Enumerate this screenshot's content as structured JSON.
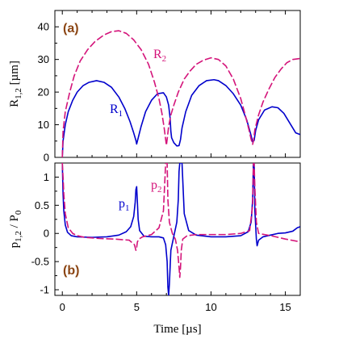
{
  "chart_data": [
    {
      "type": "line",
      "panel_label": "(a)",
      "ylabel": {
        "main": "R",
        "sub": "1,2",
        "unit": "[µm]"
      },
      "xlim": [
        -0.5,
        16
      ],
      "ylim": [
        0,
        45
      ],
      "yticks": [
        0,
        10,
        20,
        30,
        40
      ],
      "xticks": [
        0,
        5,
        10,
        15
      ],
      "grid": false,
      "series": [
        {
          "name": "R1",
          "label_main": "R",
          "label_sub": "1",
          "color": "#0000cc",
          "dash": "solid",
          "x": [
            0,
            0.05,
            0.2,
            0.4,
            0.7,
            1.0,
            1.4,
            1.8,
            2.3,
            2.8,
            3.3,
            3.8,
            4.2,
            4.55,
            4.8,
            4.95,
            5.0,
            5.05,
            5.3,
            5.6,
            6.0,
            6.4,
            6.8,
            7.0,
            7.15,
            7.25,
            7.3,
            7.35,
            7.5,
            7.7,
            7.85,
            7.95,
            8.05,
            8.3,
            8.7,
            9.2,
            9.7,
            10.2,
            10.5,
            11.0,
            11.5,
            12.0,
            12.4,
            12.65,
            12.8,
            12.9,
            13.0,
            13.2,
            13.6,
            14.1,
            14.5,
            14.9,
            15.3,
            15.7,
            16.0
          ],
          "y": [
            0,
            5,
            10,
            14,
            17.5,
            20,
            22,
            23,
            23.5,
            23,
            21.5,
            18.5,
            15,
            11,
            7.5,
            5.2,
            4.1,
            5,
            9.5,
            14,
            17.5,
            19.5,
            19.8,
            18.5,
            16,
            12,
            8,
            6,
            4.5,
            3.5,
            3.6,
            5.5,
            9,
            14,
            19,
            22,
            23.5,
            23.8,
            23.5,
            22,
            19.5,
            16,
            11.5,
            7.5,
            4.7,
            5.2,
            8.2,
            11.5,
            14.5,
            15.5,
            15.2,
            13.5,
            10.5,
            7.5,
            7
          ]
        },
        {
          "name": "R2",
          "label_main": "R",
          "label_sub": "2",
          "color": "#d4147a",
          "dash": "dashed",
          "x": [
            0,
            0.05,
            0.2,
            0.5,
            0.8,
            1.2,
            1.7,
            2.2,
            2.8,
            3.3,
            3.8,
            4.3,
            4.8,
            5.3,
            5.8,
            6.2,
            6.5,
            6.7,
            6.85,
            6.95,
            7.0,
            7.05,
            7.15,
            7.3,
            7.5,
            7.8,
            8.2,
            8.6,
            9.0,
            9.5,
            10.0,
            10.5,
            11.0,
            11.5,
            12.0,
            12.3,
            12.55,
            12.7,
            12.8,
            12.85,
            12.95,
            13.2,
            13.5,
            13.9,
            14.3,
            14.7,
            15.1,
            15.5,
            16.0
          ],
          "y": [
            0,
            8,
            14,
            20,
            25,
            29.5,
            33,
            35.5,
            37.5,
            38.5,
            38.8,
            38,
            36,
            33,
            28.5,
            23,
            18,
            13.5,
            9,
            5.5,
            3.7,
            5.5,
            9.5,
            13,
            16,
            20,
            24,
            26.5,
            28.5,
            29.8,
            30.5,
            30,
            28,
            24,
            18,
            13,
            8.5,
            5.5,
            4,
            5,
            8.5,
            13,
            17,
            21,
            24.5,
            27,
            29,
            30,
            30.3
          ]
        }
      ]
    },
    {
      "type": "line",
      "panel_label": "(b)",
      "ylabel": {
        "main": "p",
        "sub": "1,2",
        "rest": " / P",
        "sub2": "0"
      },
      "xlabel": "Time  [µs]",
      "xlim": [
        -0.5,
        16
      ],
      "ylim": [
        -1.1,
        1.25
      ],
      "yticks": [
        -1,
        -0.5,
        0,
        0.5,
        1
      ],
      "ytick_labels": [
        "-1",
        "-0.5",
        "0",
        "0.5",
        "1"
      ],
      "xticks": [
        0,
        5,
        10,
        15
      ],
      "grid": false,
      "series": [
        {
          "name": "p1",
          "label_main": "p",
          "label_sub": "1",
          "color": "#0000cc",
          "dash": "solid",
          "x": [
            0,
            0.05,
            0.1,
            0.2,
            0.35,
            0.6,
            1.0,
            2.0,
            3.0,
            3.8,
            4.3,
            4.6,
            4.8,
            4.9,
            4.95,
            5.0,
            5.05,
            5.1,
            5.2,
            5.5,
            6.0,
            6.5,
            6.8,
            6.95,
            7.05,
            7.1,
            7.15,
            7.2,
            7.3,
            7.5,
            7.7,
            7.8,
            7.85,
            7.9,
            7.95,
            8.05,
            8.2,
            8.5,
            9.0,
            10.0,
            11.0,
            12.0,
            12.5,
            12.7,
            12.8,
            12.85,
            12.9,
            12.95,
            13.05,
            13.1,
            13.2,
            13.5,
            14.0,
            14.5,
            15.0,
            15.5,
            15.8,
            16.0
          ],
          "y": [
            1.25,
            0.7,
            0.4,
            0.15,
            0.02,
            -0.04,
            -0.06,
            -0.07,
            -0.06,
            -0.03,
            0.03,
            0.12,
            0.3,
            0.55,
            0.78,
            0.83,
            0.55,
            0.25,
            0.05,
            -0.05,
            -0.06,
            -0.06,
            -0.08,
            -0.2,
            -0.5,
            -0.95,
            -1.1,
            -0.9,
            -0.3,
            -0.05,
            0.2,
            0.6,
            1.1,
            1.25,
            1.25,
            1.25,
            0.35,
            0.05,
            -0.03,
            -0.06,
            -0.06,
            -0.04,
            0.03,
            0.2,
            0.6,
            1.25,
            1.25,
            0.4,
            -0.1,
            -0.22,
            -0.12,
            -0.06,
            -0.03,
            0,
            0.01,
            0.04,
            0.1,
            0.12
          ]
        },
        {
          "name": "p2",
          "label_main": "p",
          "label_sub": "2",
          "color": "#d4147a",
          "dash": "dashed",
          "x": [
            0,
            0.05,
            0.1,
            0.2,
            0.4,
            0.7,
            1.0,
            1.5,
            2.5,
            3.5,
            4.5,
            4.85,
            4.95,
            5.0,
            5.05,
            5.15,
            5.4,
            6.0,
            6.5,
            6.8,
            6.95,
            7.0,
            7.05,
            7.1,
            7.2,
            7.4,
            7.6,
            7.75,
            7.85,
            7.9,
            7.95,
            8.0,
            8.1,
            8.4,
            9.0,
            10.0,
            11.0,
            12.0,
            12.6,
            12.8,
            12.85,
            12.9,
            12.95,
            13.05,
            13.2,
            13.6,
            14.2,
            15.0,
            16.0
          ],
          "y": [
            1.25,
            1.0,
            0.7,
            0.35,
            0.1,
            0,
            -0.04,
            -0.07,
            -0.09,
            -0.1,
            -0.12,
            -0.2,
            -0.3,
            -0.25,
            -0.15,
            -0.1,
            -0.06,
            -0.02,
            0.1,
            0.4,
            1.25,
            1.25,
            1.25,
            0.6,
            0.2,
            0,
            -0.1,
            -0.3,
            -0.6,
            -0.78,
            -0.6,
            -0.3,
            -0.1,
            -0.04,
            -0.02,
            -0.02,
            -0.02,
            0,
            0.05,
            0.5,
            1.25,
            1.25,
            0.8,
            0.2,
            0,
            -0.02,
            -0.05,
            -0.1,
            -0.15
          ]
        }
      ]
    }
  ]
}
